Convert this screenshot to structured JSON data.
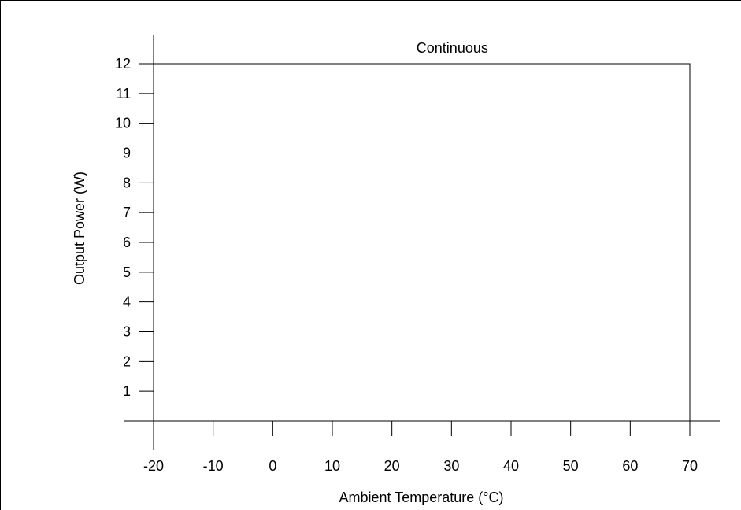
{
  "chart_data": {
    "type": "line",
    "title": "",
    "xlabel": "Ambient Temperature (°C)",
    "ylabel": "Output Power (W)",
    "xlim": [
      -25,
      75
    ],
    "ylim": [
      0,
      12.9
    ],
    "xticks": [
      -20,
      -10,
      0,
      10,
      20,
      30,
      40,
      50,
      60,
      70
    ],
    "yticks": [
      1,
      2,
      3,
      4,
      5,
      6,
      7,
      8,
      9,
      10,
      11,
      12
    ],
    "grid": false,
    "series": [
      {
        "x": [
          -20,
          70,
          70
        ],
        "y": [
          12,
          12,
          0
        ]
      }
    ],
    "annotations": [
      {
        "text": "Continuous",
        "x": 30,
        "y": 12
      }
    ],
    "colors": {
      "line": "#000000",
      "axis": "#000000"
    }
  }
}
